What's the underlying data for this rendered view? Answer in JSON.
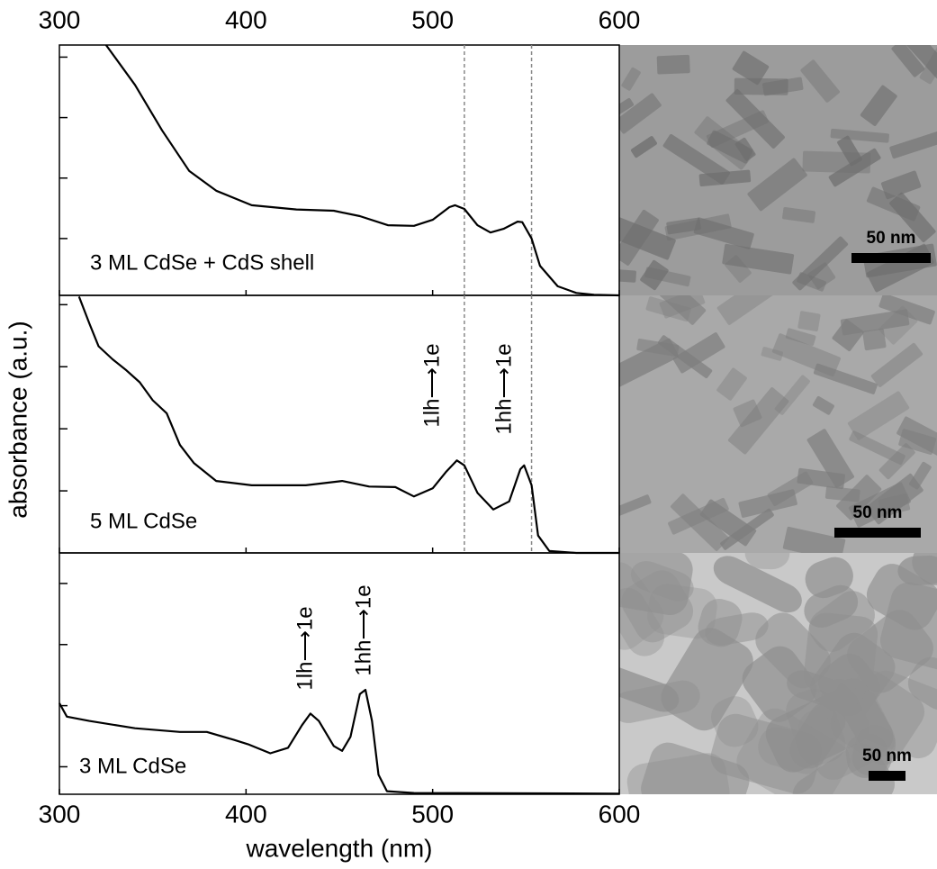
{
  "chart_data": [
    {
      "type": "line",
      "label": "3 ML CdSe + CdS shell",
      "x": [
        325,
        340.5,
        355,
        369.5,
        384,
        403,
        427,
        447,
        461,
        476,
        490,
        500,
        509,
        512,
        517,
        524,
        531,
        538,
        545.5,
        548,
        553,
        557.5,
        567,
        577,
        586.5,
        600
      ],
      "series": [
        {
          "color": "#000000",
          "values": [
            4.2,
            3.54,
            2.79,
            2.12,
            1.79,
            1.55,
            1.48,
            1.46,
            1.37,
            1.22,
            1.21,
            1.31,
            1.52,
            1.55,
            1.49,
            1.22,
            1.1,
            1.16,
            1.28,
            1.27,
            1.0,
            0.55,
            0.21,
            0.1,
            0.07,
            0.06
          ]
        }
      ],
      "xlim": [
        300,
        600
      ],
      "xticks": [
        300,
        400,
        500,
        600
      ],
      "ylim": [
        0.06,
        4.2
      ],
      "yticks": [
        1,
        2,
        3,
        4
      ],
      "vlines": [
        517,
        553
      ],
      "scale_bar": "50 nm"
    },
    {
      "type": "line",
      "label": "5 ML CdSe",
      "x": [
        310.5,
        316,
        321,
        328.5,
        336,
        343,
        350,
        357.5,
        364.6,
        372,
        384,
        403,
        432,
        451.5,
        466,
        480,
        490,
        500,
        507,
        513,
        517,
        524,
        532.5,
        541,
        547,
        549,
        553,
        556.5,
        562.5,
        577,
        600
      ],
      "series": [
        {
          "color": "#000000",
          "values": [
            4.13,
            3.7,
            3.33,
            3.12,
            2.94,
            2.75,
            2.46,
            2.25,
            1.74,
            1.45,
            1.16,
            1.09,
            1.09,
            1.16,
            1.07,
            1.06,
            0.91,
            1.04,
            1.3,
            1.49,
            1.41,
            0.97,
            0.7,
            0.83,
            1.35,
            1.41,
            1.09,
            0.28,
            0.03,
            0.0,
            0.0
          ]
        }
      ],
      "xlim": [
        300,
        600
      ],
      "xticks": [
        300,
        400,
        500,
        600
      ],
      "ylim": [
        0,
        4.15
      ],
      "yticks": [
        1,
        2,
        3,
        4
      ],
      "vlines": [
        517,
        553
      ],
      "annotations": [
        "1lh⟶1e",
        "1hh⟶1e"
      ],
      "y_label": "absorbance (a.u.)",
      "scale_bar": "50 nm"
    },
    {
      "type": "line",
      "label": "3 ML CdSe",
      "x": [
        300,
        304,
        316,
        340.5,
        364.6,
        379,
        393.5,
        401,
        413,
        422.5,
        430,
        434.5,
        439,
        447,
        451.5,
        456,
        461,
        464,
        467.5,
        471,
        475.5,
        490,
        600
      ],
      "series": [
        {
          "color": "#000000",
          "values": [
            2.04,
            1.82,
            1.75,
            1.63,
            1.57,
            1.57,
            1.44,
            1.37,
            1.22,
            1.31,
            1.68,
            1.87,
            1.75,
            1.34,
            1.26,
            1.49,
            2.19,
            2.26,
            1.75,
            0.87,
            0.6,
            0.57,
            0.56
          ]
        }
      ],
      "xlim": [
        300,
        600
      ],
      "xticks": [
        300,
        400,
        500,
        600
      ],
      "ylim": [
        0.55,
        4.5
      ],
      "yticks": [
        1,
        2,
        3,
        4
      ],
      "annotations": [
        "1lh⟶1e",
        "1hh⟶1e"
      ],
      "x_label": "wavelength (nm)",
      "scale_bar": "50 nm"
    }
  ]
}
